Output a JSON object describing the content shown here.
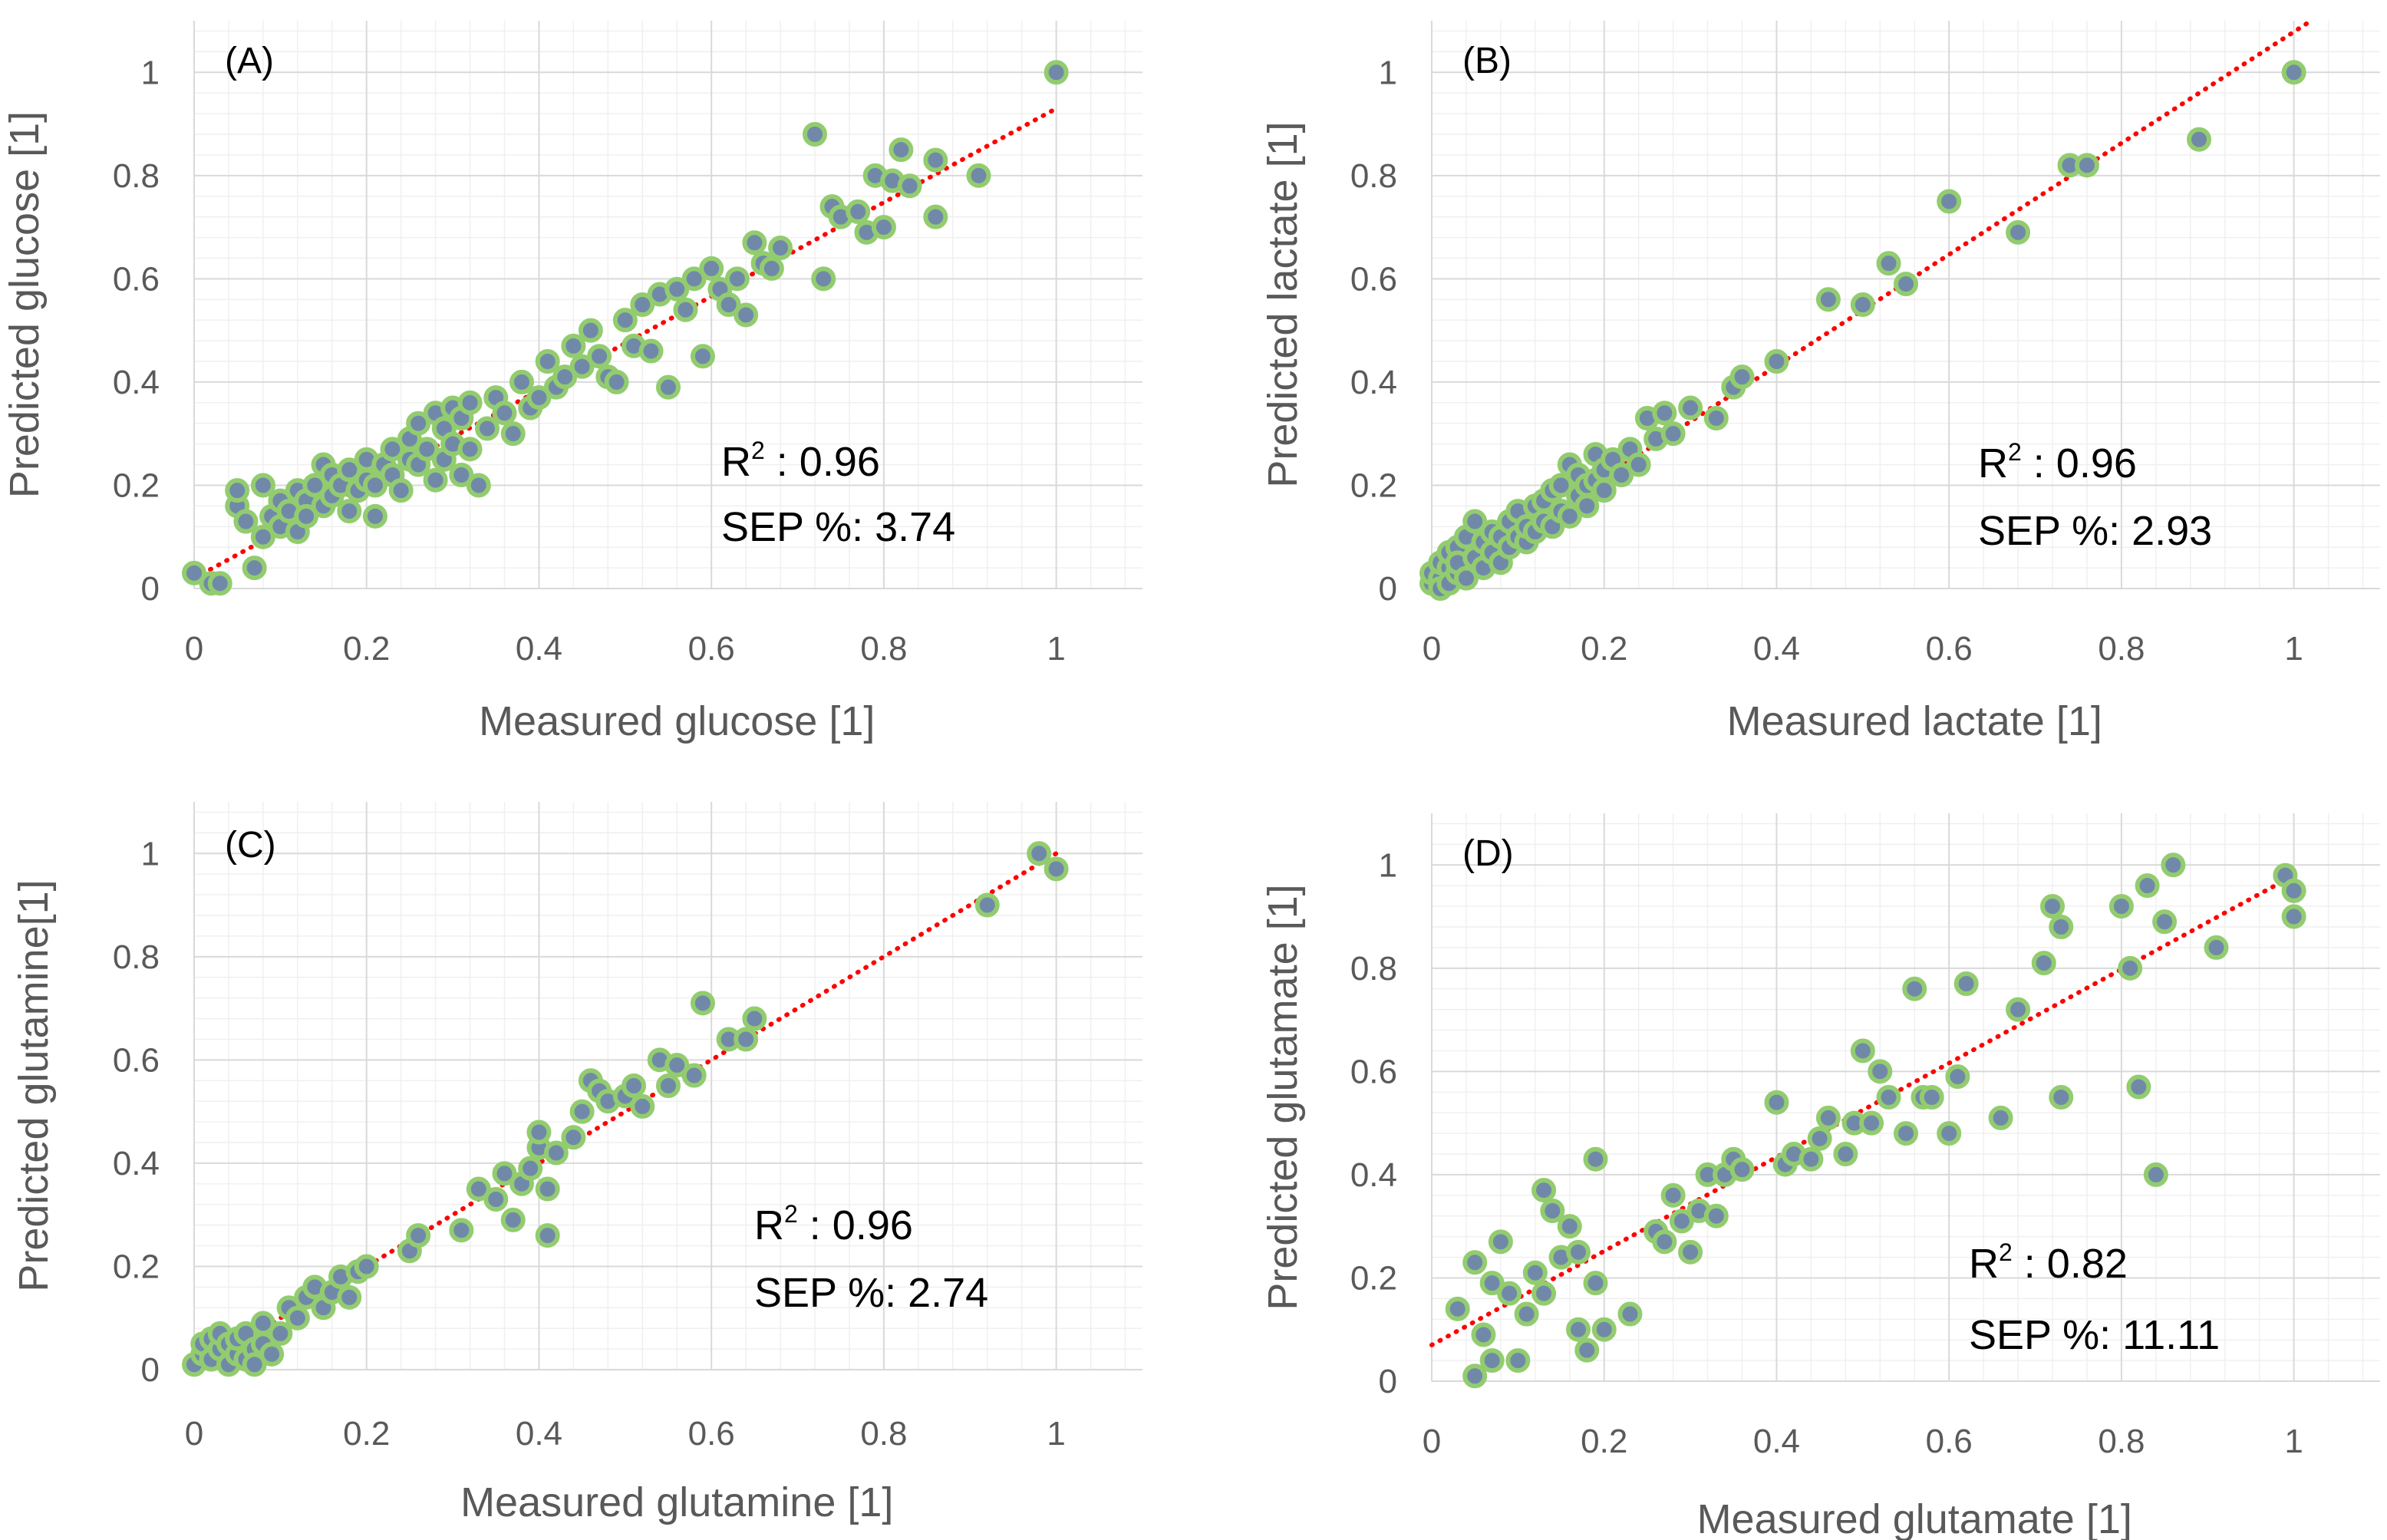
{
  "chart_data": [
    {
      "type": "scatter",
      "panel_label": "(A)",
      "xlabel": "Measured glucose [1]",
      "ylabel": "Predicted glucose [1]",
      "xlim": [
        0,
        1.1
      ],
      "ylim": [
        0,
        1.1
      ],
      "x_ticks": [
        "0",
        "0.2",
        "0.4",
        "0.6",
        "0.8",
        "1"
      ],
      "y_ticks": [
        "0",
        "0.2",
        "0.4",
        "0.6",
        "0.8",
        "1"
      ],
      "annotation": {
        "r2_label": "R",
        "r2_sup": "2",
        "r2_rest": " : 0.96",
        "sep": "SEP %: 3.74"
      },
      "fit_line": {
        "x": [
          0,
          1
        ],
        "y": [
          0.02,
          0.93
        ]
      },
      "grid": true,
      "legend": false,
      "colors": {
        "marker_fill": "#7189a8",
        "marker_edge": "#92cc6f",
        "fit_line": "#ff0000"
      },
      "x": [
        0.0,
        0.02,
        0.03,
        0.05,
        0.05,
        0.06,
        0.07,
        0.08,
        0.08,
        0.09,
        0.1,
        0.1,
        0.11,
        0.12,
        0.12,
        0.13,
        0.13,
        0.14,
        0.15,
        0.15,
        0.16,
        0.16,
        0.17,
        0.18,
        0.18,
        0.19,
        0.2,
        0.2,
        0.21,
        0.21,
        0.22,
        0.23,
        0.23,
        0.24,
        0.25,
        0.25,
        0.26,
        0.26,
        0.27,
        0.28,
        0.28,
        0.29,
        0.29,
        0.3,
        0.3,
        0.31,
        0.31,
        0.32,
        0.32,
        0.33,
        0.34,
        0.35,
        0.36,
        0.37,
        0.38,
        0.39,
        0.4,
        0.41,
        0.42,
        0.43,
        0.44,
        0.45,
        0.46,
        0.47,
        0.48,
        0.49,
        0.5,
        0.51,
        0.52,
        0.53,
        0.54,
        0.55,
        0.56,
        0.57,
        0.58,
        0.59,
        0.6,
        0.61,
        0.62,
        0.63,
        0.64,
        0.65,
        0.66,
        0.67,
        0.68,
        0.72,
        0.73,
        0.74,
        0.75,
        0.77,
        0.78,
        0.79,
        0.8,
        0.81,
        0.82,
        0.83,
        0.86,
        0.86,
        0.91,
        1.0
      ],
      "y": [
        0.03,
        0.01,
        0.01,
        0.16,
        0.19,
        0.13,
        0.04,
        0.1,
        0.2,
        0.14,
        0.12,
        0.17,
        0.15,
        0.11,
        0.19,
        0.17,
        0.14,
        0.2,
        0.16,
        0.24,
        0.18,
        0.22,
        0.2,
        0.15,
        0.23,
        0.19,
        0.21,
        0.25,
        0.14,
        0.2,
        0.24,
        0.22,
        0.27,
        0.19,
        0.25,
        0.29,
        0.24,
        0.32,
        0.27,
        0.21,
        0.34,
        0.25,
        0.31,
        0.28,
        0.35,
        0.22,
        0.33,
        0.27,
        0.36,
        0.2,
        0.31,
        0.37,
        0.34,
        0.3,
        0.4,
        0.35,
        0.37,
        0.44,
        0.39,
        0.41,
        0.47,
        0.43,
        0.5,
        0.45,
        0.41,
        0.4,
        0.52,
        0.47,
        0.55,
        0.46,
        0.57,
        0.39,
        0.58,
        0.54,
        0.6,
        0.45,
        0.62,
        0.58,
        0.55,
        0.6,
        0.53,
        0.67,
        0.63,
        0.62,
        0.66,
        0.88,
        0.6,
        0.74,
        0.72,
        0.73,
        0.69,
        0.8,
        0.7,
        0.79,
        0.85,
        0.78,
        0.72,
        0.83,
        0.8,
        1.0
      ]
    },
    {
      "type": "scatter",
      "panel_label": "(B)",
      "xlabel": "Measured lactate [1]",
      "ylabel": "Predicted lactate [1]",
      "xlim": [
        0,
        1.1
      ],
      "ylim": [
        0,
        1.1
      ],
      "x_ticks": [
        "0",
        "0.2",
        "0.4",
        "0.6",
        "0.8",
        "1"
      ],
      "y_ticks": [
        "0",
        "0.2",
        "0.4",
        "0.6",
        "0.8",
        "1"
      ],
      "annotation": {
        "r2_label": "R",
        "r2_sup": "2",
        "r2_rest": " : 0.96",
        "sep": "SEP %: 2.93"
      },
      "fit_line": {
        "x": [
          0,
          1.02
        ],
        "y": [
          0.0,
          1.1
        ]
      },
      "grid": true,
      "legend": false,
      "colors": {
        "marker_fill": "#7189a8",
        "marker_edge": "#92cc6f",
        "fit_line": "#ff0000"
      },
      "x": [
        0.0,
        0.0,
        0.01,
        0.01,
        0.01,
        0.02,
        0.02,
        0.02,
        0.03,
        0.03,
        0.03,
        0.04,
        0.04,
        0.05,
        0.05,
        0.06,
        0.06,
        0.07,
        0.07,
        0.08,
        0.08,
        0.09,
        0.09,
        0.1,
        0.1,
        0.11,
        0.11,
        0.12,
        0.12,
        0.13,
        0.13,
        0.14,
        0.14,
        0.15,
        0.15,
        0.16,
        0.16,
        0.17,
        0.17,
        0.18,
        0.18,
        0.19,
        0.19,
        0.2,
        0.2,
        0.21,
        0.22,
        0.23,
        0.24,
        0.25,
        0.26,
        0.27,
        0.28,
        0.3,
        0.33,
        0.35,
        0.36,
        0.4,
        0.46,
        0.5,
        0.53,
        0.55,
        0.6,
        0.68,
        0.74,
        0.76,
        0.89,
        1.0
      ],
      "y": [
        0.01,
        0.03,
        0.02,
        0.05,
        0.0,
        0.04,
        0.07,
        0.01,
        0.03,
        0.08,
        0.05,
        0.02,
        0.1,
        0.06,
        0.13,
        0.04,
        0.09,
        0.07,
        0.11,
        0.05,
        0.1,
        0.08,
        0.13,
        0.1,
        0.15,
        0.09,
        0.12,
        0.11,
        0.16,
        0.13,
        0.17,
        0.12,
        0.19,
        0.15,
        0.2,
        0.14,
        0.24,
        0.18,
        0.22,
        0.16,
        0.2,
        0.21,
        0.26,
        0.19,
        0.23,
        0.25,
        0.22,
        0.27,
        0.24,
        0.33,
        0.29,
        0.34,
        0.3,
        0.35,
        0.33,
        0.39,
        0.41,
        0.44,
        0.56,
        0.55,
        0.63,
        0.59,
        0.75,
        0.69,
        0.82,
        0.82,
        0.87,
        1.0
      ]
    },
    {
      "type": "scatter",
      "panel_label": "(C)",
      "xlabel": "Measured glutamine [1]",
      "ylabel": "Predicted glutamine[1]",
      "xlim": [
        0,
        1.1
      ],
      "ylim": [
        0,
        1.1
      ],
      "x_ticks": [
        "0",
        "0.2",
        "0.4",
        "0.6",
        "0.8",
        "1"
      ],
      "y_ticks": [
        "0",
        "0.2",
        "0.4",
        "0.6",
        "0.8",
        "1"
      ],
      "annotation": {
        "r2_label": "R",
        "r2_sup": "2",
        "r2_rest": " : 0.96",
        "sep": "SEP %: 2.74"
      },
      "fit_line": {
        "x": [
          0,
          1
        ],
        "y": [
          0.0,
          1.0
        ]
      },
      "grid": true,
      "legend": false,
      "colors": {
        "marker_fill": "#7189a8",
        "marker_edge": "#92cc6f",
        "fit_line": "#ff0000"
      },
      "x": [
        0.0,
        0.01,
        0.01,
        0.02,
        0.02,
        0.03,
        0.03,
        0.04,
        0.04,
        0.05,
        0.05,
        0.06,
        0.06,
        0.07,
        0.07,
        0.08,
        0.08,
        0.09,
        0.1,
        0.11,
        0.12,
        0.13,
        0.14,
        0.15,
        0.16,
        0.17,
        0.18,
        0.19,
        0.2,
        0.25,
        0.26,
        0.31,
        0.33,
        0.35,
        0.36,
        0.37,
        0.38,
        0.39,
        0.4,
        0.4,
        0.41,
        0.41,
        0.42,
        0.44,
        0.45,
        0.46,
        0.47,
        0.48,
        0.5,
        0.51,
        0.52,
        0.54,
        0.55,
        0.56,
        0.58,
        0.59,
        0.62,
        0.64,
        0.65,
        0.92,
        0.98,
        1.0
      ],
      "y": [
        0.01,
        0.03,
        0.05,
        0.02,
        0.06,
        0.04,
        0.07,
        0.01,
        0.05,
        0.03,
        0.06,
        0.02,
        0.07,
        0.04,
        0.01,
        0.05,
        0.09,
        0.03,
        0.07,
        0.12,
        0.1,
        0.14,
        0.16,
        0.12,
        0.15,
        0.18,
        0.14,
        0.19,
        0.2,
        0.23,
        0.26,
        0.27,
        0.35,
        0.33,
        0.38,
        0.29,
        0.36,
        0.39,
        0.43,
        0.46,
        0.26,
        0.35,
        0.42,
        0.45,
        0.5,
        0.56,
        0.54,
        0.52,
        0.53,
        0.55,
        0.51,
        0.6,
        0.55,
        0.59,
        0.57,
        0.71,
        0.64,
        0.64,
        0.68,
        0.9,
        1.0,
        0.97
      ]
    },
    {
      "type": "scatter",
      "panel_label": "(D)",
      "xlabel": "Measured glutamate [1]",
      "ylabel": "Predicted glutamate [1]",
      "xlim": [
        0,
        1.1
      ],
      "ylim": [
        0,
        1.1
      ],
      "x_ticks": [
        "0",
        "0.2",
        "0.4",
        "0.6",
        "0.8",
        "1"
      ],
      "y_ticks": [
        "0",
        "0.2",
        "0.4",
        "0.6",
        "0.8",
        "1"
      ],
      "annotation": {
        "r2_label": "R",
        "r2_sup": "2",
        "r2_rest": " : 0.82",
        "sep": "SEP %: 11.11"
      },
      "fit_line": {
        "x": [
          0,
          1
        ],
        "y": [
          0.07,
          0.98
        ]
      },
      "grid": true,
      "legend": false,
      "colors": {
        "marker_fill": "#7189a8",
        "marker_edge": "#92cc6f",
        "fit_line": "#ff0000"
      },
      "x": [
        0.03,
        0.05,
        0.05,
        0.06,
        0.07,
        0.07,
        0.08,
        0.09,
        0.1,
        0.11,
        0.12,
        0.13,
        0.13,
        0.14,
        0.15,
        0.16,
        0.17,
        0.17,
        0.18,
        0.19,
        0.19,
        0.2,
        0.23,
        0.26,
        0.27,
        0.28,
        0.29,
        0.3,
        0.31,
        0.32,
        0.33,
        0.34,
        0.35,
        0.36,
        0.4,
        0.41,
        0.42,
        0.44,
        0.45,
        0.46,
        0.48,
        0.49,
        0.5,
        0.51,
        0.52,
        0.53,
        0.55,
        0.56,
        0.57,
        0.58,
        0.6,
        0.61,
        0.62,
        0.66,
        0.68,
        0.71,
        0.72,
        0.73,
        0.73,
        0.8,
        0.81,
        0.82,
        0.83,
        0.84,
        0.85,
        0.86,
        0.91,
        0.99,
        1.0,
        1.0
      ],
      "y": [
        0.14,
        0.01,
        0.23,
        0.09,
        0.19,
        0.04,
        0.27,
        0.17,
        0.04,
        0.13,
        0.21,
        0.37,
        0.17,
        0.33,
        0.24,
        0.3,
        0.25,
        0.1,
        0.06,
        0.43,
        0.19,
        0.1,
        0.13,
        0.29,
        0.27,
        0.36,
        0.31,
        0.25,
        0.33,
        0.4,
        0.32,
        0.4,
        0.43,
        0.41,
        0.54,
        0.42,
        0.44,
        0.43,
        0.47,
        0.51,
        0.44,
        0.5,
        0.64,
        0.5,
        0.6,
        0.55,
        0.48,
        0.76,
        0.55,
        0.55,
        0.48,
        0.59,
        0.77,
        0.51,
        0.72,
        0.81,
        0.92,
        0.88,
        0.55,
        0.92,
        0.8,
        0.57,
        0.96,
        0.4,
        0.89,
        1.0,
        0.84,
        0.98,
        0.95,
        0.9
      ]
    }
  ]
}
